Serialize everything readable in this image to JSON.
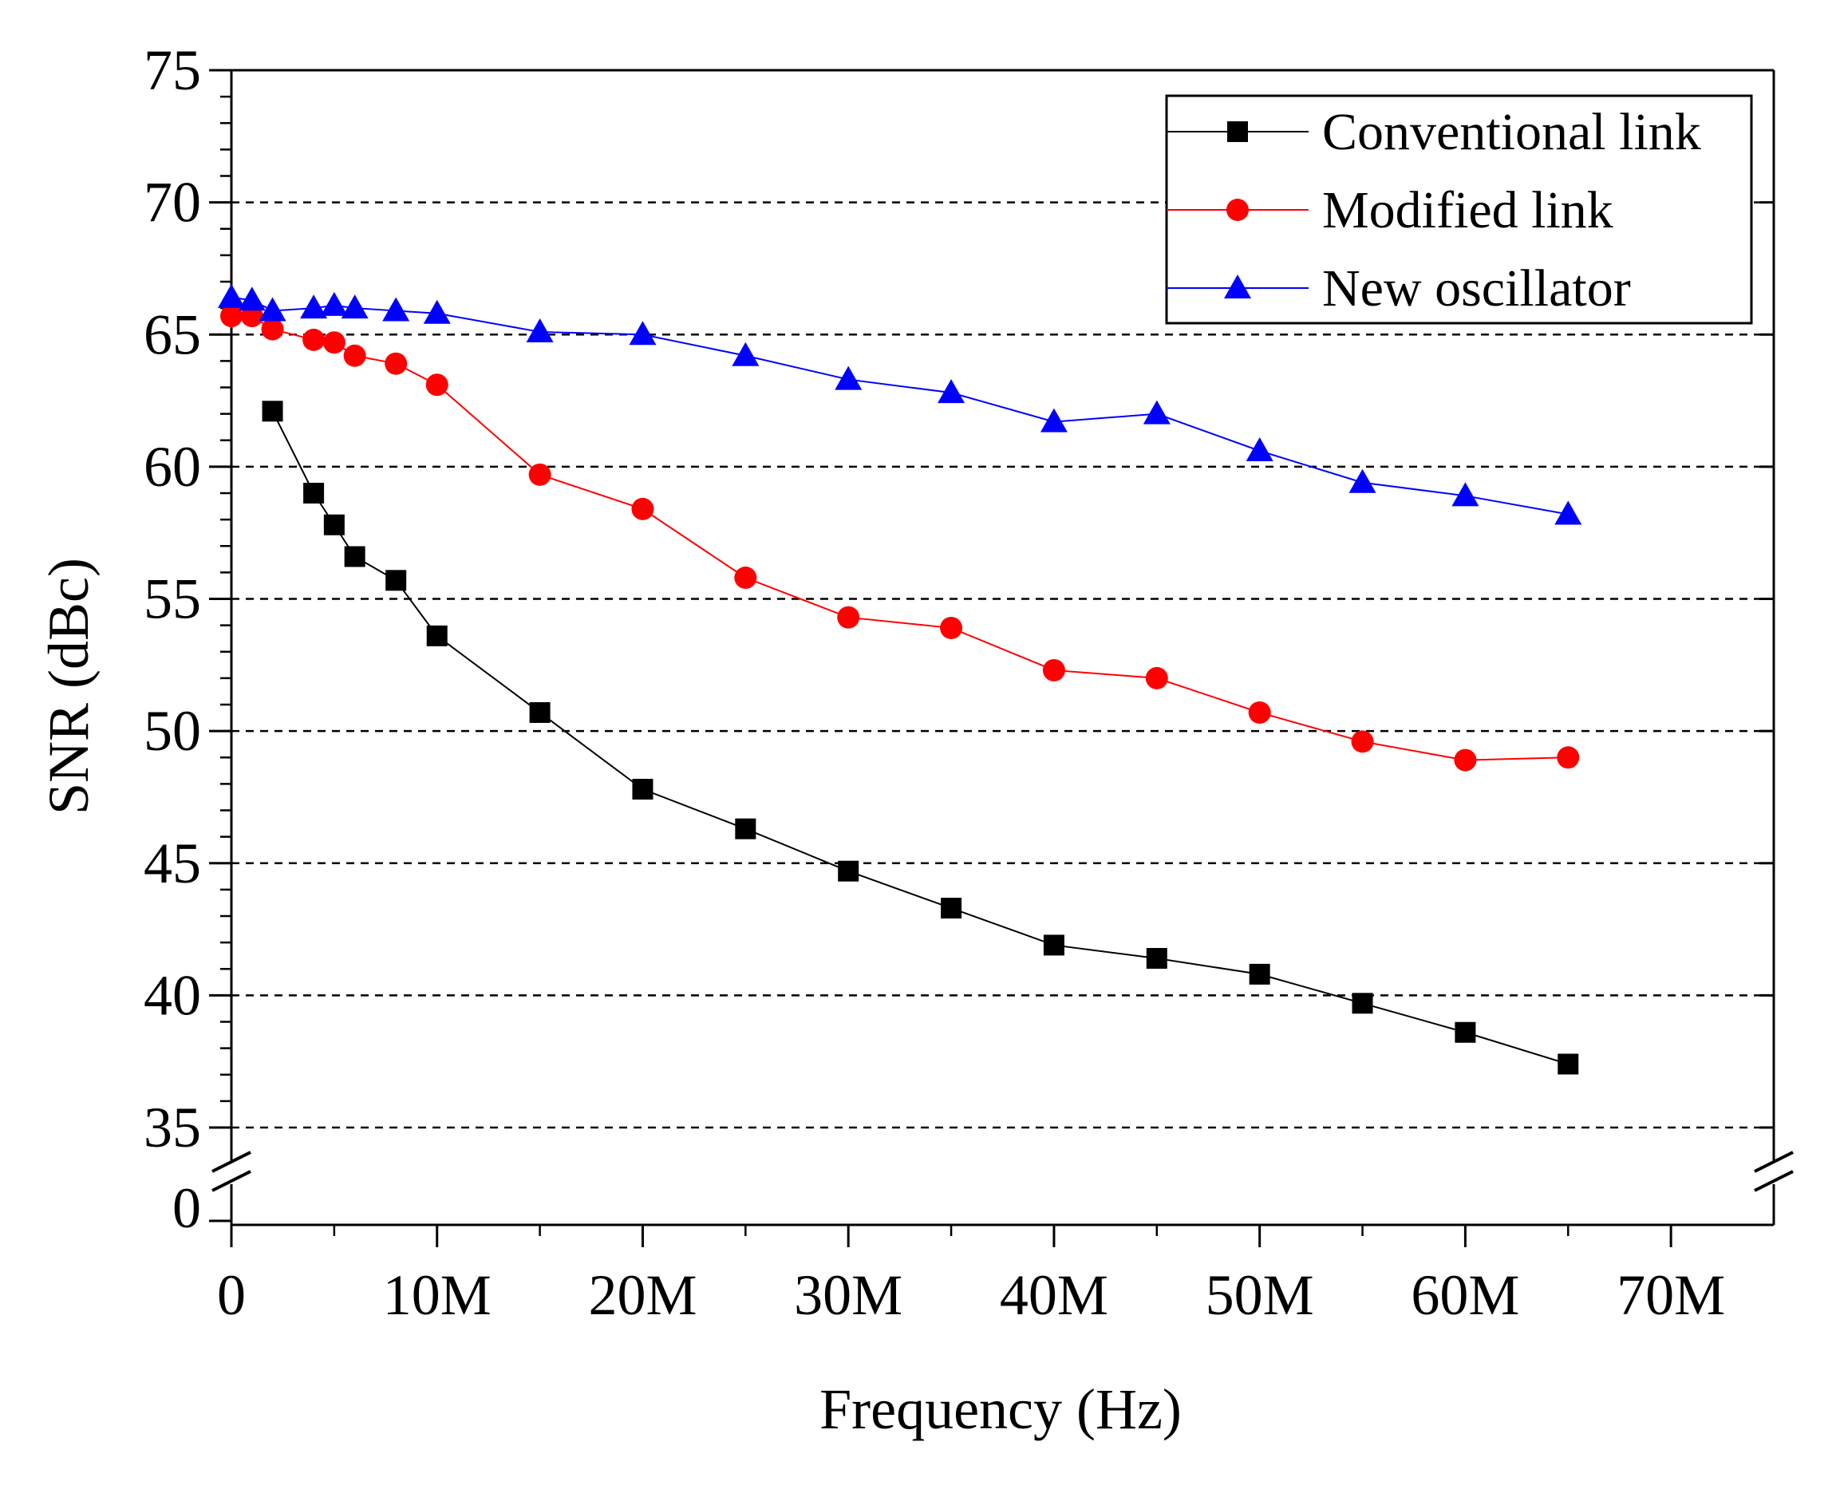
{
  "chart_data": {
    "type": "line",
    "title": "",
    "xlabel": "Frequency (Hz)",
    "ylabel": "SNR (dBc)",
    "xlim": [
      0,
      75
    ],
    "ylim_upper": [
      33,
      75
    ],
    "ylim_lower": [
      0,
      0
    ],
    "axis_break": true,
    "x_ticks": [
      {
        "value": 0,
        "label": "0"
      },
      {
        "value": 10,
        "label": "10M"
      },
      {
        "value": 20,
        "label": "20M"
      },
      {
        "value": 30,
        "label": "30M"
      },
      {
        "value": 40,
        "label": "40M"
      },
      {
        "value": 50,
        "label": "50M"
      },
      {
        "value": 60,
        "label": "60M"
      },
      {
        "value": 70,
        "label": "70M"
      }
    ],
    "y_ticks": [
      {
        "value": 35,
        "label": "35"
      },
      {
        "value": 40,
        "label": "40"
      },
      {
        "value": 45,
        "label": "45"
      },
      {
        "value": 50,
        "label": "50"
      },
      {
        "value": 55,
        "label": "55"
      },
      {
        "value": 60,
        "label": "60"
      },
      {
        "value": 65,
        "label": "65"
      },
      {
        "value": 70,
        "label": "70"
      },
      {
        "value": 75,
        "label": "75"
      }
    ],
    "y_lower_label": "0",
    "grid": "horizontal dashed",
    "legend_position": "top-right",
    "series": [
      {
        "name": "Conventional link",
        "color": "#000000",
        "marker": "square",
        "x": [
          2,
          4,
          5,
          6,
          8,
          10,
          15,
          20,
          25,
          30,
          35,
          40,
          45,
          50,
          55,
          60,
          65
        ],
        "y": [
          62.1,
          59.0,
          57.8,
          56.6,
          55.7,
          53.6,
          50.7,
          47.8,
          46.3,
          44.7,
          43.3,
          41.9,
          41.4,
          40.8,
          39.7,
          38.6,
          37.4
        ]
      },
      {
        "name": "Modified link",
        "color": "#ff0000",
        "marker": "circle",
        "x": [
          0,
          1,
          2,
          4,
          5,
          6,
          8,
          10,
          15,
          20,
          25,
          30,
          35,
          40,
          45,
          50,
          55,
          60,
          65
        ],
        "y": [
          65.7,
          65.7,
          65.2,
          64.8,
          64.7,
          64.2,
          63.9,
          63.1,
          59.7,
          58.4,
          55.8,
          54.3,
          53.9,
          52.3,
          52.0,
          50.7,
          49.6,
          48.9,
          49.0
        ]
      },
      {
        "name": "New oscillator",
        "color": "#0000ff",
        "marker": "triangle",
        "x": [
          0,
          1,
          2,
          4,
          5,
          6,
          8,
          10,
          15,
          20,
          25,
          30,
          35,
          40,
          45,
          50,
          55,
          60,
          65
        ],
        "y": [
          66.4,
          66.3,
          65.9,
          66.0,
          66.1,
          66.0,
          65.9,
          65.8,
          65.1,
          65.0,
          64.2,
          63.3,
          62.8,
          61.7,
          62.0,
          60.6,
          59.4,
          58.9,
          58.2
        ]
      }
    ]
  }
}
